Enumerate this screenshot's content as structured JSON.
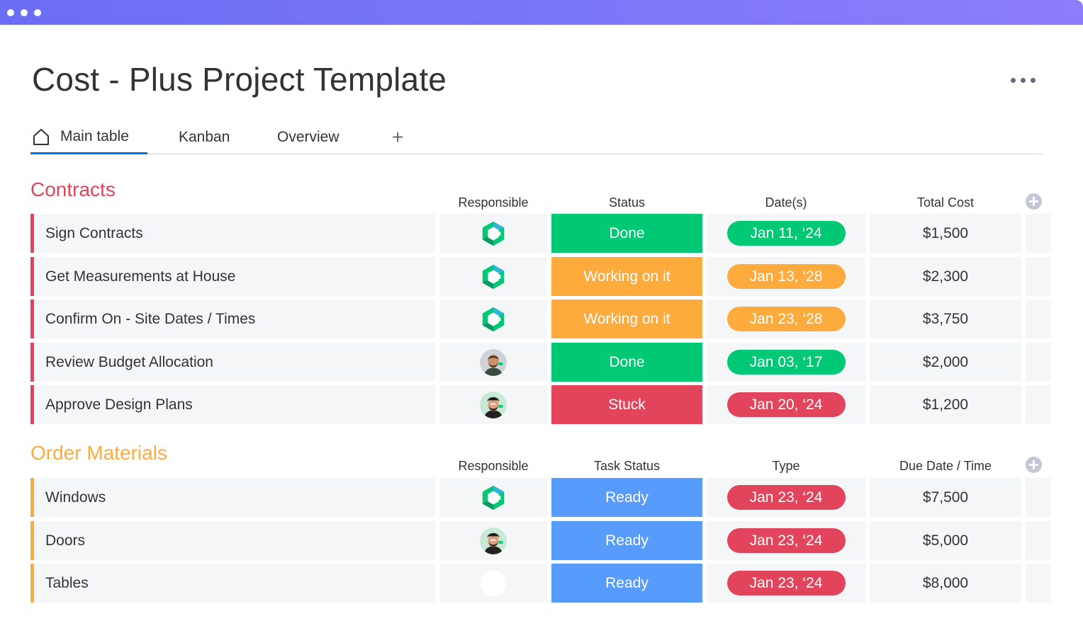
{
  "window": {
    "accent_start": "#6a6ef5",
    "accent_end": "#8c7dfa"
  },
  "page": {
    "title": "Cost - Plus Project Template"
  },
  "tabs": [
    {
      "label": "Main table",
      "icon": "home-icon",
      "active": true
    },
    {
      "label": "Kanban",
      "active": false
    },
    {
      "label": "Overview",
      "active": false
    }
  ],
  "tab_add_label": "+",
  "groups": [
    {
      "title": "Contracts",
      "color": "#e2445c",
      "columns": {
        "person": "Responsible",
        "status": "Status",
        "date": "Date(s)",
        "cost": "Total Cost"
      },
      "rows": [
        {
          "name": "Sign Contracts",
          "avatar": "logo-avatar",
          "status": "Done",
          "status_color": "#00c875",
          "date": "Jan 11, ‘24",
          "date_color": "#00c875",
          "cost": "$1,500"
        },
        {
          "name": "Get Measurements at House",
          "avatar": "logo-avatar",
          "status": "Working on it",
          "status_color": "#fdab3d",
          "date": "Jan 13, ‘28",
          "date_color": "#fdab3d",
          "cost": "$2,300"
        },
        {
          "name": "Confirm On - Site Dates / Times",
          "avatar": "logo-avatar",
          "status": "Working on it",
          "status_color": "#fdab3d",
          "date": "Jan 23, ‘28",
          "date_color": "#fdab3d",
          "cost": "$3,750"
        },
        {
          "name": "Review Budget Allocation",
          "avatar": "person-avatar-1",
          "status": "Done",
          "status_color": "#00c875",
          "date": "Jan 03, ‘17",
          "date_color": "#00c875",
          "cost": "$2,000"
        },
        {
          "name": "Approve Design Plans",
          "avatar": "person-avatar-2",
          "status": "Stuck",
          "status_color": "#e2445c",
          "date": "Jan 20, ‘24",
          "date_color": "#e2445c",
          "cost": "$1,200"
        }
      ]
    },
    {
      "title": "Order Materials",
      "color": "#fdab3d",
      "columns": {
        "person": "Responsible",
        "status": "Task Status",
        "date": "Type",
        "cost": "Due Date / Time"
      },
      "rows": [
        {
          "name": "Windows",
          "avatar": "logo-avatar",
          "status": "Ready",
          "status_color": "#579bfc",
          "date": "Jan 23, ‘24",
          "date_color": "#e2445c",
          "cost": "$7,500"
        },
        {
          "name": "Doors",
          "avatar": "person-avatar-2",
          "status": "Ready",
          "status_color": "#579bfc",
          "date": "Jan 23, ‘24",
          "date_color": "#e2445c",
          "cost": "$5,000"
        },
        {
          "name": "Tables",
          "avatar": "empty-avatar",
          "status": "Ready",
          "status_color": "#579bfc",
          "date": "Jan 23, ‘24",
          "date_color": "#e2445c",
          "cost": "$8,000"
        }
      ]
    }
  ]
}
